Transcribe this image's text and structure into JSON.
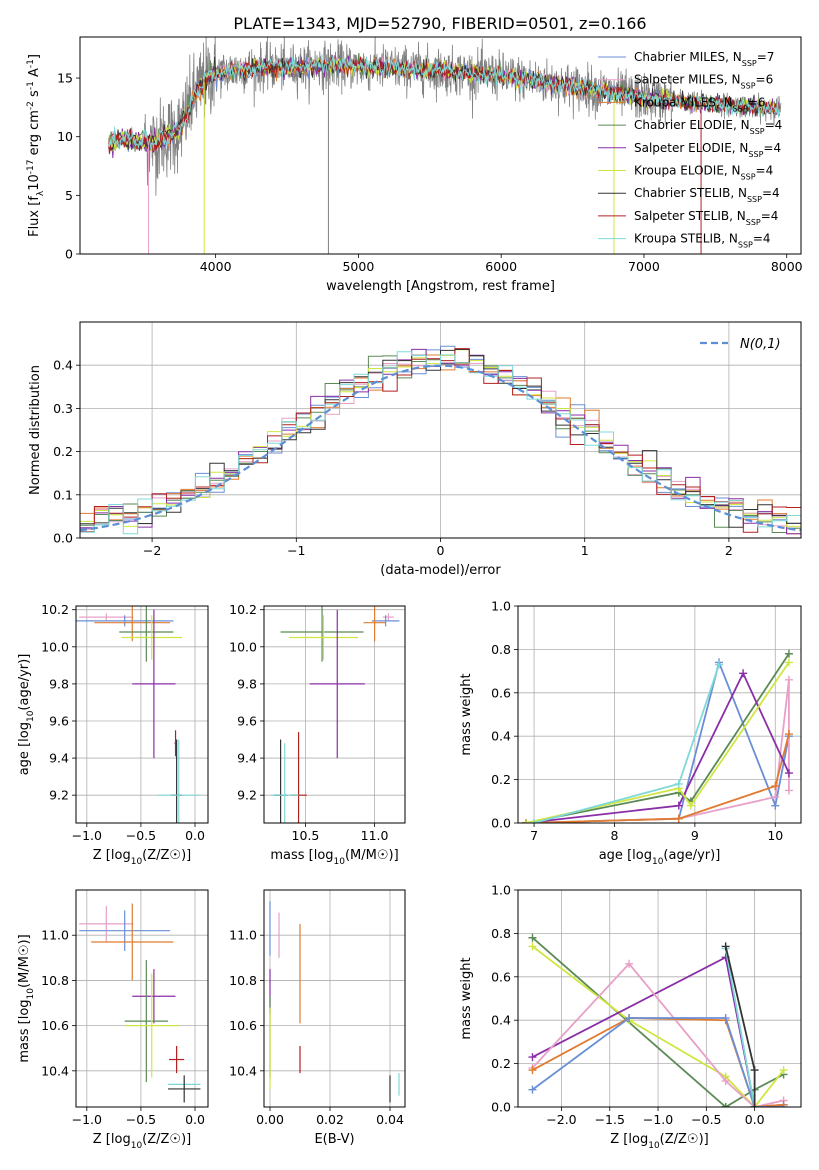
{
  "title": "PLATE=1343, MJD=52790, FIBERID=0501, z=0.166",
  "colors": {
    "chabrier_miles": "#6a8fd6",
    "salpeter_miles": "#e7a0c8",
    "kroupa_miles": "#e07b2f",
    "chabrier_elodie": "#5a8a55",
    "salpeter_elodie": "#8a2ea8",
    "kroupa_elodie": "#d0e640",
    "chabrier_stelib": "#333333",
    "salpeter_stelib": "#b22020",
    "kroupa_stelib": "#7fd8d8",
    "data": "#808080",
    "gaussian": "#5b8fd6",
    "grid": "#b0b0b0"
  },
  "chart_data": [
    {
      "id": "spectrum",
      "type": "line",
      "xlabel": "wavelength [Angstrom, rest frame]",
      "ylabel": "Flux [f_λ10^{-17} erg cm^{-2} s^{-1} A^{-1}]",
      "xlim": [
        3050,
        8100
      ],
      "ylim": [
        0,
        18.5
      ],
      "xticks": [
        "4000",
        "5000",
        "6000",
        "7000",
        "8000"
      ],
      "xtick_values": [
        4000,
        5000,
        6000,
        7000,
        8000
      ],
      "yticks": [
        "0",
        "5",
        "10",
        "15"
      ],
      "ytick_values": [
        0,
        5,
        10,
        15
      ],
      "legend_position": "upper right",
      "legend": [
        {
          "key": "chabrier_miles",
          "name": "Chabrier MILES, N",
          "sub": "SSP",
          "suffix": "=7"
        },
        {
          "key": "salpeter_miles",
          "name": "Salpeter MILES, N",
          "sub": "SSP",
          "suffix": "=6"
        },
        {
          "key": "kroupa_miles",
          "name": "Kroupa MILES, N",
          "sub": "SSP",
          "suffix": "=6"
        },
        {
          "key": "chabrier_elodie",
          "name": "Chabrier ELODIE, N",
          "sub": "SSP",
          "suffix": "=4"
        },
        {
          "key": "salpeter_elodie",
          "name": "Salpeter ELODIE, N",
          "sub": "SSP",
          "suffix": "=4"
        },
        {
          "key": "kroupa_elodie",
          "name": "Kroupa ELODIE, N",
          "sub": "SSP",
          "suffix": "=4"
        },
        {
          "key": "chabrier_stelib",
          "name": "Chabrier STELIB, N",
          "sub": "SSP",
          "suffix": "=4"
        },
        {
          "key": "salpeter_stelib",
          "name": "Salpeter STELIB, N",
          "sub": "SSP",
          "suffix": "=4"
        },
        {
          "key": "kroupa_stelib",
          "name": "Kroupa STELIB, N",
          "sub": "SSP",
          "suffix": "=4"
        }
      ],
      "continuum": {
        "x": [
          3250,
          3350,
          3450,
          3550,
          3650,
          3750,
          3850,
          3950,
          4100,
          4300,
          4500,
          4800,
          5100,
          5500,
          6000,
          6500,
          7000,
          7500,
          7900
        ],
        "y": [
          9.4,
          9.8,
          9.6,
          9.4,
          10.0,
          10.6,
          13.5,
          15.2,
          15.6,
          15.9,
          15.9,
          16.1,
          15.9,
          15.7,
          15.2,
          14.3,
          13.3,
          12.8,
          12.4
        ]
      },
      "data_line_range": [
        3500,
        7960
      ],
      "dropouts": [
        {
          "key": "salpeter_miles",
          "x": 3530
        },
        {
          "key": "kroupa_elodie",
          "x": 3920
        },
        {
          "key": "data",
          "x": 4790
        },
        {
          "key": "kroupa_elodie",
          "x": 6790
        },
        {
          "key": "salpeter_stelib",
          "x": 7400
        }
      ]
    },
    {
      "id": "residual_histogram",
      "type": "histogram",
      "xlabel": "(data-model)/error",
      "ylabel": "Normed distribution",
      "xlim": [
        -2.5,
        2.5
      ],
      "ylim": [
        0,
        0.5
      ],
      "xticks": [
        "−2",
        "−1",
        "0",
        "1",
        "2"
      ],
      "xtick_values": [
        -2,
        -1,
        0,
        1,
        2
      ],
      "yticks": [
        "0.0",
        "0.1",
        "0.2",
        "0.3",
        "0.4"
      ],
      "ytick_values": [
        0,
        0.1,
        0.2,
        0.3,
        0.4
      ],
      "legend_position": "upper right",
      "gaussian_label": "N(0,1)",
      "bin_width": 0.1,
      "bin_start": -2.5
    },
    {
      "id": "age_vs_Z",
      "type": "errorbar",
      "xlabel": "Z [log10(Z/Z☉)]",
      "ylabel": "age  [log10(age/yr)]",
      "xlim": [
        -1.1,
        0.12
      ],
      "ylim": [
        9.05,
        10.22
      ],
      "xticks": [
        "−1.0",
        "−0.5",
        "0.0"
      ],
      "xtick_values": [
        -1.0,
        -0.5,
        0.0
      ],
      "yticks": [
        "9.2",
        "9.4",
        "9.6",
        "9.8",
        "10.0",
        "10.2"
      ],
      "ytick_values": [
        9.2,
        9.4,
        9.6,
        9.8,
        10.0,
        10.2
      ],
      "points": [
        {
          "key": "salpeter_miles",
          "x": -0.82,
          "y": 10.16,
          "xerr": 0.25,
          "yerr": 0.02
        },
        {
          "key": "chabrier_miles",
          "x": -0.65,
          "y": 10.14,
          "xerr": 0.45,
          "yerr": 0.03
        },
        {
          "key": "kroupa_miles",
          "x": -0.58,
          "y": 10.13,
          "xerr": 0.35,
          "yerr": 0.1
        },
        {
          "key": "chabrier_elodie",
          "x": -0.45,
          "y": 10.08,
          "xerr": 0.25,
          "yerr": 0.16
        },
        {
          "key": "kroupa_elodie",
          "x": -0.4,
          "y": 10.05,
          "xerr": 0.28,
          "yerr": 0.12
        },
        {
          "key": "salpeter_elodie",
          "x": -0.38,
          "y": 9.8,
          "xerr": 0.2,
          "yerr": 0.4
        },
        {
          "key": "salpeter_stelib",
          "x": -0.18,
          "y": 9.48,
          "xerr": 0.01,
          "yerr": 0.07
        },
        {
          "key": "chabrier_stelib",
          "x": -0.17,
          "y": 9.2,
          "xerr": 0.05,
          "yerr": 0.3
        },
        {
          "key": "kroupa_stelib",
          "x": -0.15,
          "y": 9.2,
          "xerr": 0.2,
          "yerr": 0.3
        }
      ]
    },
    {
      "id": "age_vs_mass",
      "type": "errorbar",
      "xlabel": "mass [log10(M/M☉)]",
      "ylabel": "",
      "xlim": [
        10.2,
        11.22
      ],
      "ylim": [
        9.05,
        10.22
      ],
      "xticks": [
        "10.5",
        "11.0"
      ],
      "xtick_values": [
        10.5,
        11.0
      ],
      "yticks": [
        "9.2",
        "9.4",
        "9.6",
        "9.8",
        "10.0",
        "10.2"
      ],
      "ytick_values": [
        9.2,
        9.4,
        9.6,
        9.8,
        10.0,
        10.2
      ],
      "points": [
        {
          "key": "salpeter_miles",
          "x": 11.1,
          "y": 10.16,
          "xerr": 0.04,
          "yerr": 0.02
        },
        {
          "key": "chabrier_miles",
          "x": 11.08,
          "y": 10.14,
          "xerr": 0.1,
          "yerr": 0.03
        },
        {
          "key": "kroupa_miles",
          "x": 11.0,
          "y": 10.13,
          "xerr": 0.08,
          "yerr": 0.1
        },
        {
          "key": "chabrier_elodie",
          "x": 10.62,
          "y": 10.08,
          "xerr": 0.3,
          "yerr": 0.16
        },
        {
          "key": "kroupa_elodie",
          "x": 10.63,
          "y": 10.05,
          "xerr": 0.25,
          "yerr": 0.12
        },
        {
          "key": "salpeter_elodie",
          "x": 10.73,
          "y": 9.8,
          "xerr": 0.2,
          "yerr": 0.4
        },
        {
          "key": "salpeter_stelib",
          "x": 10.45,
          "y": 9.2,
          "xerr": 0.06,
          "yerr": 0.34
        },
        {
          "key": "chabrier_stelib",
          "x": 10.32,
          "y": 9.2,
          "xerr": 0.05,
          "yerr": 0.3
        },
        {
          "key": "kroupa_stelib",
          "x": 10.35,
          "y": 9.2,
          "xerr": 0.1,
          "yerr": 0.28
        }
      ]
    },
    {
      "id": "mass_weight_vs_age",
      "type": "line",
      "xlabel": "age  [log10(age/yr)]",
      "ylabel": "mass weight",
      "xlim": [
        6.8,
        10.32
      ],
      "ylim": [
        0,
        1.0
      ],
      "xticks": [
        "7",
        "8",
        "9",
        "10"
      ],
      "xtick_values": [
        7,
        8,
        9,
        10
      ],
      "yticks": [
        "0.0",
        "0.2",
        "0.4",
        "0.6",
        "0.8",
        "1.0"
      ],
      "ytick_values": [
        0,
        0.2,
        0.4,
        0.6,
        0.8,
        1.0
      ],
      "series": [
        {
          "key": "chabrier_miles",
          "x": [
            6.9,
            8.8,
            9.3,
            10.0,
            10.17
          ],
          "y": [
            0.0,
            0.02,
            0.74,
            0.08,
            0.4
          ]
        },
        {
          "key": "salpeter_miles",
          "x": [
            6.9,
            8.8,
            10.0,
            10.17,
            10.17
          ],
          "y": [
            0.0,
            0.02,
            0.12,
            0.66,
            0.15
          ]
        },
        {
          "key": "kroupa_miles",
          "x": [
            6.9,
            8.8,
            10.0,
            10.17
          ],
          "y": [
            0.0,
            0.02,
            0.17,
            0.41
          ]
        },
        {
          "key": "chabrier_elodie",
          "x": [
            6.9,
            8.8,
            8.95,
            10.17
          ],
          "y": [
            0.0,
            0.14,
            0.1,
            0.78
          ]
        },
        {
          "key": "salpeter_elodie",
          "x": [
            6.9,
            8.8,
            9.6,
            10.17
          ],
          "y": [
            0.0,
            0.08,
            0.69,
            0.23
          ]
        },
        {
          "key": "kroupa_elodie",
          "x": [
            6.9,
            8.8,
            8.95,
            10.17
          ],
          "y": [
            0.0,
            0.16,
            0.08,
            0.74
          ]
        },
        {
          "key": "kroupa_stelib",
          "x": [
            7.0,
            8.8,
            9.3
          ],
          "y": [
            0.0,
            0.18,
            0.73
          ]
        }
      ]
    },
    {
      "id": "mass_vs_Z",
      "type": "errorbar",
      "xlabel": "Z [log10(Z/Z☉)]",
      "ylabel": "mass [log10(M/M☉)]",
      "xlim": [
        -1.1,
        0.12
      ],
      "ylim": [
        10.24,
        11.2
      ],
      "xticks": [
        "−1.0",
        "−0.5",
        "0.0"
      ],
      "xtick_values": [
        -1.0,
        -0.5,
        0.0
      ],
      "yticks": [
        "10.4",
        "10.6",
        "10.8",
        "11.0"
      ],
      "ytick_values": [
        10.4,
        10.6,
        10.8,
        11.0
      ],
      "points": [
        {
          "key": "salpeter_miles",
          "x": -0.82,
          "y": 11.05,
          "xerr": 0.25,
          "yerr": 0.08
        },
        {
          "key": "chabrier_miles",
          "x": -0.65,
          "y": 11.02,
          "xerr": 0.42,
          "yerr": 0.09
        },
        {
          "key": "kroupa_miles",
          "x": -0.58,
          "y": 10.97,
          "xerr": 0.38,
          "yerr": 0.17
        },
        {
          "key": "salpeter_elodie",
          "x": -0.38,
          "y": 10.73,
          "xerr": 0.2,
          "yerr": 0.12
        },
        {
          "key": "chabrier_elodie",
          "x": -0.45,
          "y": 10.62,
          "xerr": 0.2,
          "yerr": 0.27
        },
        {
          "key": "kroupa_elodie",
          "x": -0.4,
          "y": 10.6,
          "xerr": 0.25,
          "yerr": 0.23
        },
        {
          "key": "salpeter_stelib",
          "x": -0.17,
          "y": 10.45,
          "xerr": 0.07,
          "yerr": 0.06
        },
        {
          "key": "kroupa_stelib",
          "x": -0.1,
          "y": 10.34,
          "xerr": 0.15,
          "yerr": 0.02
        },
        {
          "key": "chabrier_stelib",
          "x": -0.1,
          "y": 10.32,
          "xerr": 0.15,
          "yerr": 0.06
        }
      ]
    },
    {
      "id": "mass_vs_ebv",
      "type": "errorbar",
      "xlabel": "E(B-V)",
      "ylabel": "",
      "xlim": [
        -0.002,
        0.045
      ],
      "ylim": [
        10.24,
        11.2
      ],
      "xticks": [
        "0.00",
        "0.02",
        "0.04"
      ],
      "xtick_values": [
        0,
        0.02,
        0.04
      ],
      "yticks": [
        "10.4",
        "10.6",
        "10.8",
        "11.0"
      ],
      "ytick_values": [
        10.4,
        10.6,
        10.8,
        11.0
      ],
      "points": [
        {
          "key": "chabrier_miles",
          "x": 0.0,
          "y": 11.03,
          "xerr": 0,
          "yerr": 0.12
        },
        {
          "key": "salpeter_miles",
          "x": 0.003,
          "y": 11.0,
          "xerr": 0,
          "yerr": 0.1
        },
        {
          "key": "kroupa_miles",
          "x": 0.01,
          "y": 10.83,
          "xerr": 0,
          "yerr": 0.22
        },
        {
          "key": "salpeter_elodie",
          "x": 0.0,
          "y": 10.75,
          "xerr": 0,
          "yerr": 0.1
        },
        {
          "key": "chabrier_elodie",
          "x": 0.0,
          "y": 10.55,
          "xerr": 0,
          "yerr": 0.18
        },
        {
          "key": "kroupa_elodie",
          "x": 0.0,
          "y": 10.5,
          "xerr": 0,
          "yerr": 0.18
        },
        {
          "key": "salpeter_stelib",
          "x": 0.01,
          "y": 10.45,
          "xerr": 0,
          "yerr": 0.06
        },
        {
          "key": "chabrier_stelib",
          "x": 0.04,
          "y": 10.32,
          "xerr": 0,
          "yerr": 0.06
        },
        {
          "key": "kroupa_stelib",
          "x": 0.043,
          "y": 10.34,
          "xerr": 0,
          "yerr": 0.05
        }
      ]
    },
    {
      "id": "mass_weight_vs_Z",
      "type": "line",
      "xlabel": "Z [log10(Z/Z☉)]",
      "ylabel": "mass weight",
      "xlim": [
        -2.45,
        0.48
      ],
      "ylim": [
        0,
        1.0
      ],
      "xticks": [
        "−2.0",
        "−1.5",
        "−1.0",
        "−0.5",
        "0.0"
      ],
      "xtick_values": [
        -2.0,
        -1.5,
        -1.0,
        -0.5,
        0.0
      ],
      "yticks": [
        "0.0",
        "0.2",
        "0.4",
        "0.6",
        "0.8",
        "1.0"
      ],
      "ytick_values": [
        0,
        0.2,
        0.4,
        0.6,
        0.8,
        1.0
      ],
      "series": [
        {
          "key": "chabrier_elodie",
          "x": [
            -2.3,
            -0.3,
            -0.3,
            0.0,
            0.3
          ],
          "y": [
            0.78,
            0.0,
            0.0,
            0.08,
            0.15
          ]
        },
        {
          "key": "kroupa_elodie",
          "x": [
            -2.3,
            -1.3,
            -0.3,
            0.0,
            0.3
          ],
          "y": [
            0.74,
            0.4,
            0.14,
            0.0,
            0.17
          ]
        },
        {
          "key": "salpeter_elodie",
          "x": [
            -2.3,
            -0.3,
            0.0,
            0.3
          ],
          "y": [
            0.23,
            0.69,
            0.0,
            0.01
          ]
        },
        {
          "key": "salpeter_miles",
          "x": [
            -2.3,
            -1.3,
            -0.3,
            0.0,
            0.3
          ],
          "y": [
            0.18,
            0.66,
            0.12,
            0.0,
            0.03
          ]
        },
        {
          "key": "kroupa_miles",
          "x": [
            -2.3,
            -1.3,
            -0.3,
            0.0,
            0.3
          ],
          "y": [
            0.17,
            0.41,
            0.4,
            0.0,
            0.01
          ]
        },
        {
          "key": "chabrier_miles",
          "x": [
            -2.3,
            -1.3,
            -0.3,
            0.0,
            0.3
          ],
          "y": [
            0.08,
            0.41,
            0.41,
            0.0,
            0.0
          ]
        },
        {
          "key": "kroupa_stelib",
          "x": [
            -0.3,
            0.0
          ],
          "y": [
            0.73,
            0.0
          ]
        },
        {
          "key": "chabrier_stelib",
          "x": [
            -0.3,
            0.0,
            0.0
          ],
          "y": [
            0.74,
            0.17,
            0.0
          ]
        }
      ]
    }
  ]
}
